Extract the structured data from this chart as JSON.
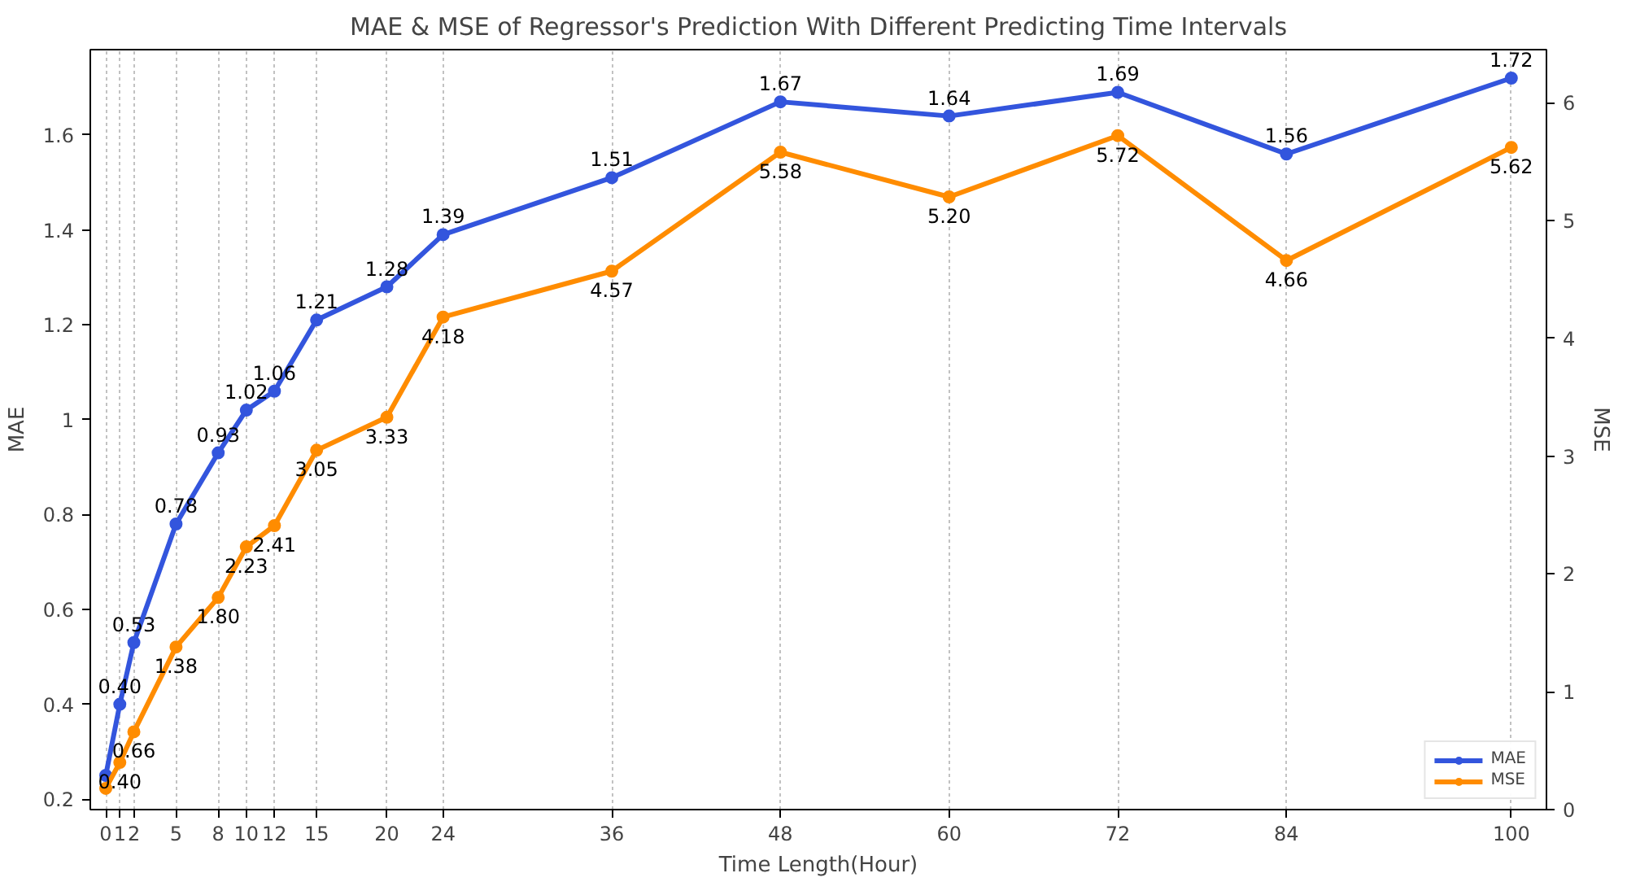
{
  "chart_data": {
    "type": "line",
    "title": "MAE & MSE of Regressor's Prediction With Different Predicting Time Intervals",
    "xlabel": "Time Length(Hour)",
    "ylabel": "MAE",
    "y2label": "MSE",
    "x": [
      0,
      1,
      2,
      5,
      8,
      10,
      12,
      15,
      20,
      24,
      36,
      48,
      60,
      72,
      84,
      100
    ],
    "series": [
      {
        "name": "MAE",
        "color": "#3355dd",
        "values": [
          0.25,
          0.4,
          0.53,
          0.78,
          0.93,
          1.02,
          1.06,
          1.21,
          1.28,
          1.39,
          1.51,
          1.67,
          1.64,
          1.69,
          1.56,
          1.72
        ],
        "value_labels": [
          null,
          "0.40",
          "0.53",
          "0.78",
          "0.93",
          "1.02",
          "1.06",
          "1.21",
          "1.28",
          "1.39",
          "1.51",
          "1.67",
          "1.64",
          "1.69",
          "1.56",
          "1.72"
        ]
      },
      {
        "name": "MSE",
        "color": "#ff8c00",
        "axis": "y2",
        "values": [
          0.18,
          0.4,
          0.66,
          1.38,
          1.8,
          2.23,
          2.41,
          3.05,
          3.33,
          4.18,
          4.57,
          5.58,
          5.2,
          5.72,
          4.66,
          5.62
        ],
        "value_labels": [
          null,
          "0.40",
          "0.66",
          "1.38",
          "1.80",
          "2.23",
          "2.41",
          "3.05",
          "3.33",
          "4.18",
          "4.57",
          "5.58",
          "5.20",
          "5.72",
          "4.66",
          "5.62"
        ]
      }
    ],
    "xlim": [
      -1.1,
      102.5
    ],
    "xticks": [
      0,
      1,
      2,
      5,
      8,
      10,
      12,
      15,
      20,
      24,
      36,
      48,
      60,
      72,
      84,
      100
    ],
    "ylim": [
      0.178,
      1.78
    ],
    "yticks": [
      0.2,
      0.4,
      0.6,
      0.8,
      1.0,
      1.2,
      1.4,
      1.6
    ],
    "y2lim": [
      0,
      6.45
    ],
    "y2ticks": [
      0,
      1,
      2,
      3,
      4,
      5,
      6
    ],
    "grid": "x",
    "legend": "bottom right",
    "marker": "circle",
    "line_style": "solid"
  }
}
